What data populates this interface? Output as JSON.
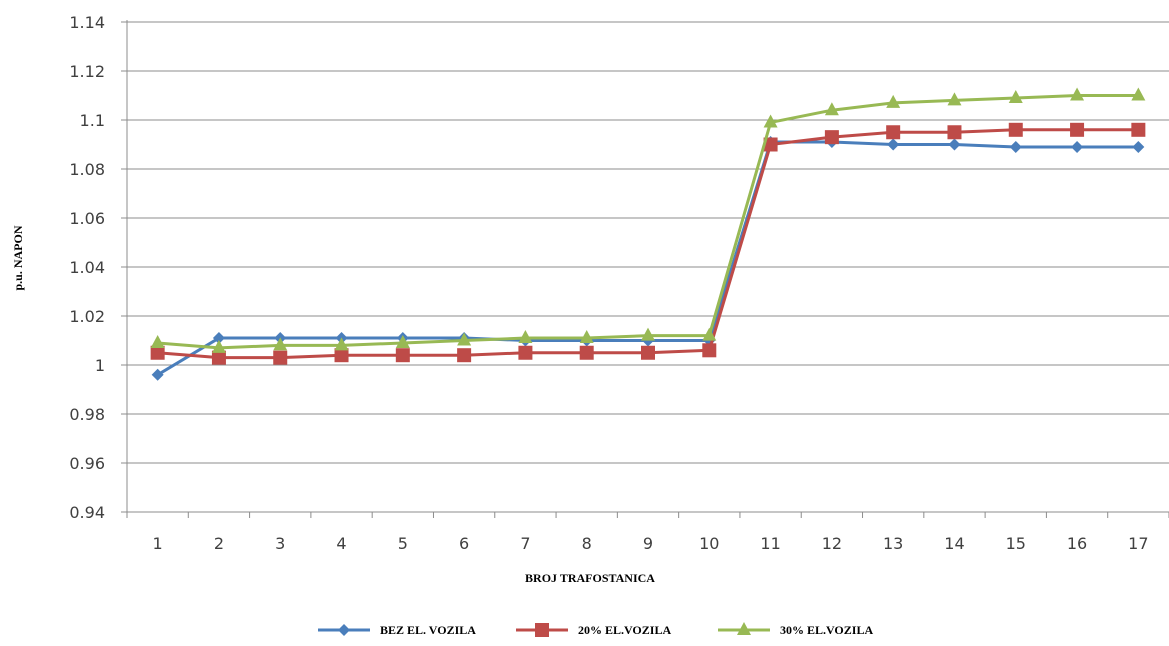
{
  "chart_data": {
    "type": "line",
    "title": "",
    "xlabel": "BROJ TRAFOSTANICA",
    "ylabel": "p.u. NAPON",
    "categories": [
      "1",
      "2",
      "3",
      "4",
      "5",
      "6",
      "7",
      "8",
      "9",
      "10",
      "11",
      "12",
      "13",
      "14",
      "15",
      "16",
      "17"
    ],
    "ylim": [
      0.94,
      1.14
    ],
    "yticks": [
      "0.94",
      "0.96",
      "0.98",
      "1",
      "1.02",
      "1.04",
      "1.06",
      "1.08",
      "1.1",
      "1.12",
      "1.14"
    ],
    "grid": true,
    "legend_position": "bottom",
    "series": [
      {
        "name": "BEZ EL. VOZILA",
        "color": "#4a7ebb",
        "marker": "diamond",
        "values": [
          0.996,
          1.011,
          1.011,
          1.011,
          1.011,
          1.011,
          1.01,
          1.01,
          1.01,
          1.01,
          1.091,
          1.091,
          1.09,
          1.09,
          1.089,
          1.089,
          1.089
        ]
      },
      {
        "name": "20% EL.VOZILA",
        "color": "#be4b48",
        "marker": "square",
        "values": [
          1.005,
          1.003,
          1.003,
          1.004,
          1.004,
          1.004,
          1.005,
          1.005,
          1.005,
          1.006,
          1.09,
          1.093,
          1.095,
          1.095,
          1.096,
          1.096,
          1.096
        ]
      },
      {
        "name": "30% EL.VOZILA",
        "color": "#98b954",
        "marker": "triangle",
        "values": [
          1.009,
          1.007,
          1.008,
          1.008,
          1.009,
          1.01,
          1.011,
          1.011,
          1.012,
          1.012,
          1.099,
          1.104,
          1.107,
          1.108,
          1.109,
          1.11,
          1.11
        ]
      }
    ]
  }
}
